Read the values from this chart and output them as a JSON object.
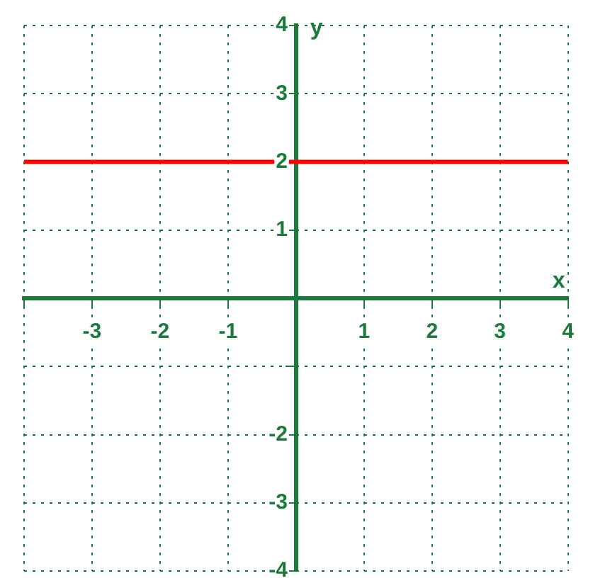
{
  "chart_data": {
    "type": "line",
    "xlabel": "x",
    "ylabel": "y",
    "xlim": [
      -4,
      4
    ],
    "ylim": [
      -4,
      4
    ],
    "xticks": [
      {
        "value": -4,
        "label": null
      },
      -3,
      -2,
      -1,
      {
        "value": 0,
        "label": null
      },
      1,
      2,
      3,
      4
    ],
    "yticks": [
      -4,
      -3,
      -2,
      {
        "value": -1,
        "label": null
      },
      {
        "value": 0,
        "label": null
      },
      1,
      2,
      3,
      4
    ],
    "grid": true,
    "marker": "none",
    "line_style": "solid",
    "series": [
      {
        "x": [
          -4,
          4
        ],
        "values": [
          2,
          2
        ],
        "color": "#ff0000"
      }
    ]
  }
}
